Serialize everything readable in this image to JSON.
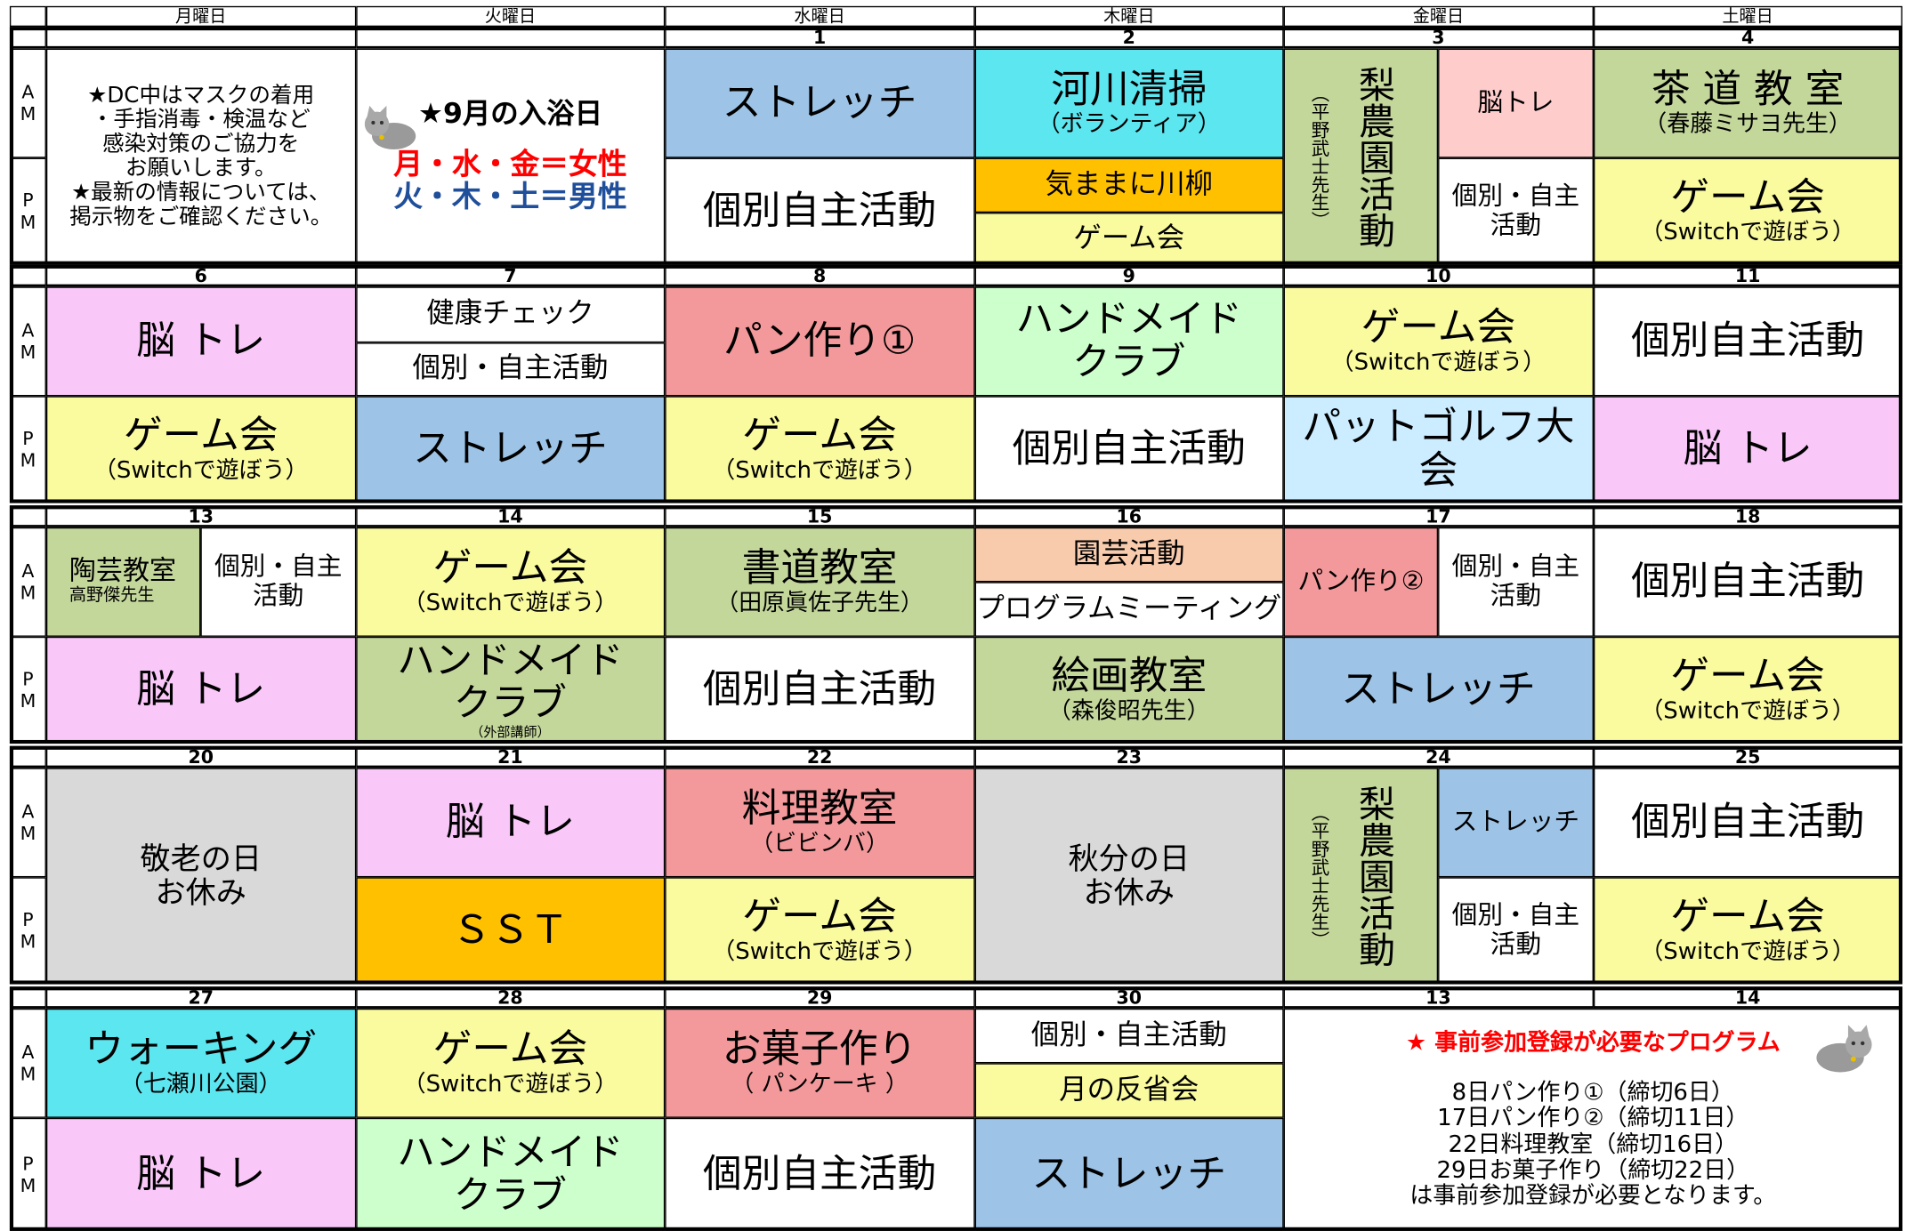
{
  "days": [
    "月曜日",
    "火曜日",
    "水曜日",
    "木曜日",
    "金曜日",
    "土曜日"
  ],
  "am_label": "AM",
  "pm_label": "PM",
  "weeks": [
    {
      "dates": [
        null,
        null,
        "1",
        "2",
        "3",
        "4"
      ],
      "cells": [
        {
          "lines": [
            "★DC中はマスクの着用",
            "・手指消毒・検温など",
            "感染対策のご協力を",
            "お願いします。",
            "★最新の情報については、",
            "掲示物をご確認ください。"
          ],
          "color": "#ffffff"
        },
        {
          "lines": [
            "★9月の入浴日",
            "月・水・金＝女性",
            "火・木・土＝男性"
          ],
          "color": "#ffffff"
        },
        {
          "lines": [
            "ストレッチ"
          ],
          "color": "#9dc3e6"
        },
        {
          "lines": [
            "個別自主活動"
          ],
          "color": "#ffffff"
        },
        {
          "lines": [
            "河川清掃",
            "（ボランティア）"
          ],
          "color": "#5ce6f0"
        },
        {
          "lines": [
            "気ままに川柳"
          ],
          "color": "#ffc000"
        },
        {
          "lines": [
            "ゲーム会"
          ],
          "color": "#fafa9e"
        },
        {
          "lines": [
            "（平野武士先生）",
            "梨農園活動"
          ],
          "color": "#c4d79b"
        },
        {
          "lines": [
            "脳トレ"
          ],
          "color": "#ffcccc"
        },
        {
          "lines": [
            "個別・自主",
            "活動"
          ],
          "color": "#ffffff"
        },
        {
          "lines": [
            "茶 道 教 室",
            "（春藤ミサヨ先生）"
          ],
          "color": "#c4d79b"
        },
        {
          "lines": [
            "ゲーム会",
            "（Switchで遊ぼう）"
          ],
          "color": "#fafa9e"
        }
      ]
    },
    {
      "dates": [
        "6",
        "7",
        "8",
        "9",
        "10",
        "11"
      ],
      "cells": [
        {
          "lines": [
            "脳 トレ"
          ],
          "color": "#f9c8f9"
        },
        {
          "lines": [
            "ゲーム会",
            "（Switchで遊ぼう）"
          ],
          "color": "#fafa9e"
        },
        {
          "lines": [
            "健康チェック"
          ],
          "color": "#ffffff"
        },
        {
          "lines": [
            "個別・自主活動"
          ],
          "color": "#ffffff"
        },
        {
          "lines": [
            "ストレッチ"
          ],
          "color": "#9dc3e6"
        },
        {
          "lines": [
            "パン作り①"
          ],
          "color": "#f4999b"
        },
        {
          "lines": [
            "ゲーム会",
            "（Switchで遊ぼう）"
          ],
          "color": "#fafa9e"
        },
        {
          "lines": [
            "ハンドメイド",
            "クラブ"
          ],
          "color": "#ccffcc"
        },
        {
          "lines": [
            "個別自主活動"
          ],
          "color": "#ffffff"
        },
        {
          "lines": [
            "ゲーム会",
            "（Switchで遊ぼう）"
          ],
          "color": "#fafa9e"
        },
        {
          "lines": [
            "パットゴルフ大会"
          ],
          "color": "#ccecff"
        },
        {
          "lines": [
            "個別自主活動"
          ],
          "color": "#ffffff"
        },
        {
          "lines": [
            "脳 トレ"
          ],
          "color": "#f9c8f9"
        }
      ]
    },
    {
      "dates": [
        "13",
        "14",
        "15",
        "16",
        "17",
        "18"
      ],
      "cells": [
        {
          "lines": [
            "陶芸教室",
            "高野傑先生"
          ],
          "color": "#c4d79b"
        },
        {
          "lines": [
            "個別・自主",
            "活動"
          ],
          "color": "#ffffff"
        },
        {
          "lines": [
            "脳 トレ"
          ],
          "color": "#f9c8f9"
        },
        {
          "lines": [
            "ゲーム会",
            "（Switchで遊ぼう）"
          ],
          "color": "#fafa9e"
        },
        {
          "lines": [
            "ハンドメイド",
            "クラブ",
            "（外部講師）"
          ],
          "color": "#c4d79b"
        },
        {
          "lines": [
            "書道教室",
            "（田原眞佐子先生）"
          ],
          "color": "#c4d79b"
        },
        {
          "lines": [
            "個別自主活動"
          ],
          "color": "#ffffff"
        },
        {
          "lines": [
            "園芸活動"
          ],
          "color": "#f8cbad"
        },
        {
          "lines": [
            "プログラムミーティング"
          ],
          "color": "#ffffff"
        },
        {
          "lines": [
            "絵画教室",
            "（森俊昭先生）"
          ],
          "color": "#c4d79b"
        },
        {
          "lines": [
            "パン作り②"
          ],
          "color": "#f4999b"
        },
        {
          "lines": [
            "個別・自主",
            "活動"
          ],
          "color": "#ffffff"
        },
        {
          "lines": [
            "ストレッチ"
          ],
          "color": "#9dc3e6"
        },
        {
          "lines": [
            "個別自主活動"
          ],
          "color": "#ffffff"
        },
        {
          "lines": [
            "ゲーム会",
            "（Switchで遊ぼう）"
          ],
          "color": "#fafa9e"
        }
      ]
    },
    {
      "dates": [
        "20",
        "21",
        "22",
        "23",
        "24",
        "25"
      ],
      "cells": [
        {
          "lines": [
            "敬老の日",
            "お休み"
          ],
          "color": "#d9d9d9"
        },
        {
          "lines": [
            "脳 トレ"
          ],
          "color": "#f9c8f9"
        },
        {
          "lines": [
            "ＳＳＴ"
          ],
          "color": "#ffc000"
        },
        {
          "lines": [
            "料理教室",
            "（ビビンバ）"
          ],
          "color": "#f4999b"
        },
        {
          "lines": [
            "ゲーム会",
            "（Switchで遊ぼう）"
          ],
          "color": "#fafa9e"
        },
        {
          "lines": [
            "秋分の日",
            "お休み"
          ],
          "color": "#d9d9d9"
        },
        {
          "lines": [
            "（平野武士先生）",
            "梨農園活動"
          ],
          "color": "#c4d79b"
        },
        {
          "lines": [
            "ストレッチ"
          ],
          "color": "#9dc3e6"
        },
        {
          "lines": [
            "個別・自主",
            "活動"
          ],
          "color": "#ffffff"
        },
        {
          "lines": [
            "個別自主活動"
          ],
          "color": "#ffffff"
        },
        {
          "lines": [
            "ゲーム会",
            "（Switchで遊ぼう）"
          ],
          "color": "#fafa9e"
        }
      ]
    },
    {
      "dates": [
        "27",
        "28",
        "29",
        "30",
        "13",
        "14"
      ],
      "cells": [
        {
          "lines": [
            "ウォーキング",
            "（七瀬川公園）"
          ],
          "color": "#5ce6f0"
        },
        {
          "lines": [
            "脳 トレ"
          ],
          "color": "#f9c8f9"
        },
        {
          "lines": [
            "ゲーム会",
            "（Switchで遊ぼう）"
          ],
          "color": "#fafa9e"
        },
        {
          "lines": [
            "ハンドメイド",
            "クラブ"
          ],
          "color": "#ccffcc"
        },
        {
          "lines": [
            "お菓子作り",
            "（ パンケーキ ）"
          ],
          "color": "#f4999b"
        },
        {
          "lines": [
            "個別自主活動"
          ],
          "color": "#ffffff"
        },
        {
          "lines": [
            "個別・自主活動"
          ],
          "color": "#ffffff"
        },
        {
          "lines": [
            "月の反省会"
          ],
          "color": "#fafa9e"
        },
        {
          "lines": [
            "ストレッチ"
          ],
          "color": "#9dc3e6"
        },
        {
          "lines": [
            "★ 事前参加登録が必要なプログラム",
            "8日パン作り①（締切6日）",
            "17日パン作り②（締切11日）",
            "22日料理教室（締切16日）",
            "29日お菓子作り（締切22日）",
            "は事前参加登録が必要となります。"
          ],
          "color": "#ffffff"
        }
      ]
    }
  ]
}
